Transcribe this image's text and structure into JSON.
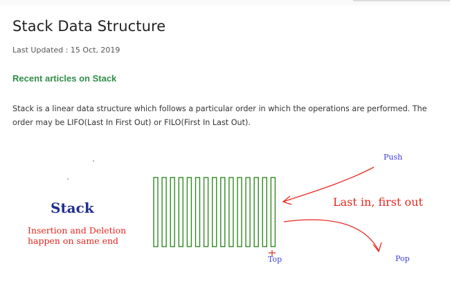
{
  "article": {
    "title": "Stack Data Structure",
    "last_updated": "Last Updated : 15 Oct, 2019",
    "recent_link": "Recent articles on Stack",
    "description": "Stack is a linear data structure which follows a particular order in which the operations are performed. The order may be LIFO(Last In First Out) or FILO(First In Last Out)."
  },
  "figure": {
    "stack_label": "Stack",
    "insertion_text": "Insertion and Deletion\nhappen on same end",
    "lifo_text": "Last in, first out",
    "push_label": "Push",
    "pop_label": "Pop",
    "top_label": "Top",
    "colors": {
      "stack_outline": "#2e8b1e",
      "arrow": "#e8261e",
      "label_blue": "#3d3ad9",
      "stack_label": "#1f2f8f",
      "link_green": "#2f8d46"
    }
  }
}
